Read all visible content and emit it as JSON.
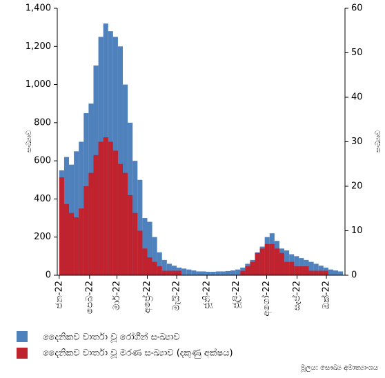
{
  "chart_data": {
    "type": "bar",
    "y_label": "සංඛ්‍යාව",
    "y2_label": "සංඛ්‍යාව",
    "source": "මූලය: සෞඛ්‍ය අමාත්‍යාංශය",
    "x": [
      0,
      5,
      10,
      15,
      20,
      25,
      30,
      35,
      40,
      45,
      50,
      55,
      60,
      65,
      70,
      75,
      80,
      85,
      90,
      95,
      100,
      105,
      110,
      115,
      120,
      125,
      130,
      135,
      140,
      145,
      150,
      155,
      160,
      165,
      170,
      175,
      180,
      185,
      190,
      195,
      200,
      205,
      210,
      215,
      220,
      225,
      230,
      235,
      240,
      245,
      250,
      255,
      260,
      265,
      270,
      275,
      280,
      285
    ],
    "xlim": [
      -2,
      292
    ],
    "xticks": [
      {
        "value": 0,
        "label": "ජන-22"
      },
      {
        "value": 31,
        "label": "පෙබ-22"
      },
      {
        "value": 59,
        "label": "මාර්-22"
      },
      {
        "value": 90,
        "label": "අප්‍රේ-22"
      },
      {
        "value": 120,
        "label": "මැයි-22"
      },
      {
        "value": 151,
        "label": "ජූනි-22"
      },
      {
        "value": 181,
        "label": "ජූලි-22"
      },
      {
        "value": 212,
        "label": "අගෝ-22"
      },
      {
        "value": 243,
        "label": "සැප්-22"
      },
      {
        "value": 273,
        "label": "ඔක්-22"
      }
    ],
    "ylim": [
      0,
      1400
    ],
    "yticks": [
      0,
      200,
      400,
      600,
      800,
      {
        "value": 1000,
        "label": "1,000"
      },
      {
        "value": 1200,
        "label": "1,200"
      },
      {
        "value": 1400,
        "label": "1,400"
      }
    ],
    "y2lim": [
      0,
      60
    ],
    "y2ticks": [
      0,
      10,
      20,
      30,
      40,
      50,
      60
    ],
    "series": [
      {
        "name": "දෛනිකව වාර්තා වූ රෝගීන් සංඛ්‍යාව",
        "color": "#4f81bd",
        "values": [
          550,
          620,
          580,
          650,
          700,
          850,
          900,
          1100,
          1250,
          1320,
          1280,
          1250,
          1200,
          1000,
          800,
          600,
          500,
          300,
          280,
          200,
          120,
          80,
          60,
          50,
          40,
          35,
          30,
          25,
          20,
          20,
          18,
          18,
          20,
          20,
          22,
          25,
          30,
          40,
          60,
          80,
          120,
          150,
          200,
          220,
          180,
          140,
          130,
          110,
          100,
          90,
          80,
          70,
          60,
          50,
          40,
          30,
          25,
          20
        ]
      },
      {
        "name": "දෛනිකව වාර්තා වූ මරණ සංඛ්‍යාව (දකුණු අක්ෂය)",
        "color": "#c0222e",
        "axis": "y2",
        "values": [
          22,
          16,
          14,
          13,
          15,
          20,
          23,
          27,
          30,
          31,
          30,
          28,
          25,
          23,
          18,
          14,
          10,
          6,
          4,
          3,
          2,
          1,
          1,
          1,
          1,
          0,
          0,
          0,
          0,
          0,
          0,
          0,
          0,
          0,
          0,
          0,
          0,
          1,
          2,
          3,
          5,
          6,
          7,
          7,
          6,
          5,
          3,
          3,
          2,
          2,
          2,
          1,
          1,
          1,
          1,
          0,
          0,
          0
        ]
      }
    ]
  }
}
